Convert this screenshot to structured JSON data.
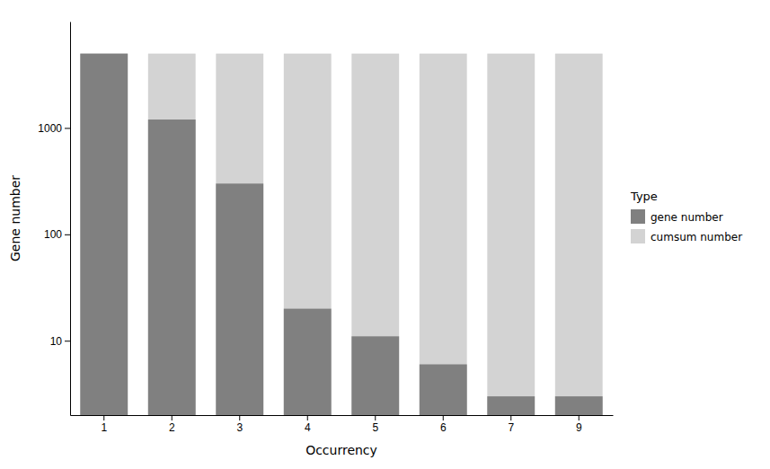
{
  "chart_data": {
    "type": "bar",
    "xlabel": "Occurrency",
    "ylabel": "Gene number",
    "legend_title": "Type",
    "categories": [
      "1",
      "2",
      "3",
      "4",
      "5",
      "6",
      "7",
      "9"
    ],
    "series": [
      {
        "name": "gene number",
        "color": "#808080",
        "values": [
          5000,
          1200,
          300,
          20,
          11,
          6,
          3,
          3
        ]
      },
      {
        "name": "cumsum number",
        "color": "#d3d3d3",
        "values": [
          5000,
          5000,
          5000,
          5000,
          5000,
          5000,
          5000,
          5000
        ]
      }
    ],
    "ylim": [
      2,
      10000
    ],
    "yticks": [
      10,
      100,
      1000
    ],
    "log": "y",
    "stacked": false,
    "grid": false,
    "legend": "right"
  }
}
